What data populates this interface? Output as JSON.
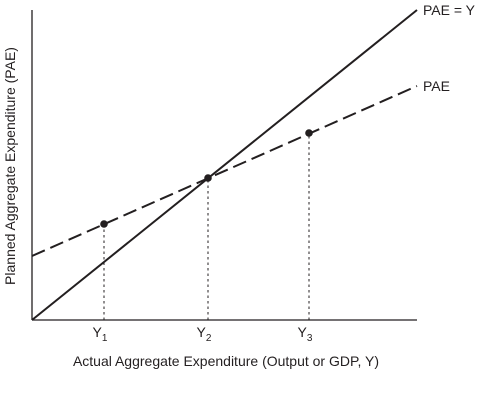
{
  "chart_data": {
    "type": "line",
    "title": "",
    "xlabel": "Actual Aggregate Expenditure (Output or GDP, Y)",
    "ylabel": "Planned Aggregate Expenditure (PAE)",
    "xlim": [
      0,
      385
    ],
    "ylim": [
      0,
      310
    ],
    "grid": false,
    "legend": "none",
    "x_ticks": [
      {
        "label_main": "Y",
        "label_sub": "1",
        "x": 72
      },
      {
        "label_main": "Y",
        "label_sub": "2",
        "x": 176
      },
      {
        "label_main": "Y",
        "label_sub": "3",
        "x": 277
      }
    ],
    "series": [
      {
        "name": "PAE = Y",
        "style": "solid",
        "points": [
          [
            0,
            0
          ],
          [
            385,
            310
          ]
        ]
      },
      {
        "name": "PAE",
        "style": "dashed",
        "points": [
          [
            0,
            64
          ],
          [
            385,
            234
          ]
        ]
      }
    ],
    "markers": [
      {
        "x": 72,
        "y": 96
      },
      {
        "x": 176,
        "y": 142
      },
      {
        "x": 277,
        "y": 187
      }
    ],
    "colors": {
      "line": "#231f20",
      "text": "#231f20"
    }
  }
}
